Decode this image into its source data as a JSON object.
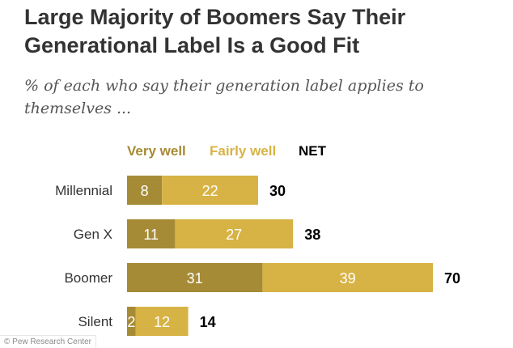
{
  "title": "Large Majority of Boomers Say Their Generational Label Is a Good Fit",
  "subtitle": "% of each who say their generation label applies to themselves ...",
  "credit": "© Pew Research Center",
  "colors": {
    "very_well": "#A68B36",
    "fairly_well": "#D7B345",
    "net": "#000000",
    "label_text": "#333333"
  },
  "chart_data": {
    "type": "bar",
    "orientation": "horizontal",
    "stacked": true,
    "categories": [
      "Millennial",
      "Gen X",
      "Boomer",
      "Silent"
    ],
    "series": [
      {
        "name": "Very well",
        "values": [
          8,
          11,
          31,
          2
        ]
      },
      {
        "name": "Fairly well",
        "values": [
          22,
          27,
          39,
          12
        ]
      }
    ],
    "net": {
      "name": "NET",
      "values": [
        30,
        38,
        70,
        14
      ]
    },
    "legend": "top"
  }
}
